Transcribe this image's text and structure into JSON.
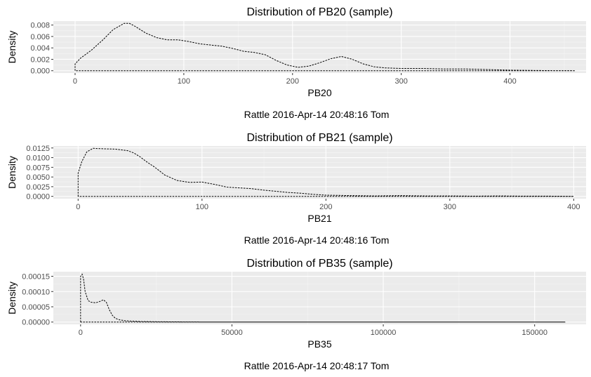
{
  "chart_data": [
    {
      "type": "area",
      "title": "Distribution of PB20 (sample)",
      "xlabel": "PB20",
      "ylabel": "Density",
      "caption": "Rattle 2016-Apr-14 20:48:16 Tom",
      "xlim": [
        -20,
        470
      ],
      "ylim": [
        -0.0004,
        0.0087
      ],
      "x_ticks": [
        0,
        100,
        200,
        300,
        400
      ],
      "y_ticks": [
        0.0,
        0.002,
        0.004,
        0.006,
        0.008
      ],
      "y_tick_labels": [
        "0.000",
        "0.002",
        "0.004",
        "0.006",
        "0.008"
      ],
      "x_tick_labels": [
        "0",
        "100",
        "200",
        "300",
        "400"
      ],
      "grid": true,
      "series": [
        {
          "x": [
            0,
            5,
            15,
            25,
            35,
            45,
            50,
            55,
            65,
            75,
            85,
            95,
            105,
            115,
            125,
            135,
            145,
            155,
            165,
            175,
            185,
            195,
            205,
            215,
            225,
            235,
            245,
            255,
            265,
            275,
            285,
            300,
            320,
            340,
            360,
            380,
            400,
            420,
            440,
            460
          ],
          "y": [
            0.0012,
            0.0022,
            0.0036,
            0.0053,
            0.0072,
            0.0083,
            0.0083,
            0.0078,
            0.0066,
            0.0058,
            0.0054,
            0.0054,
            0.0051,
            0.0047,
            0.0045,
            0.0043,
            0.0039,
            0.0034,
            0.0032,
            0.0028,
            0.0018,
            0.001,
            0.0006,
            0.0008,
            0.0014,
            0.0021,
            0.0025,
            0.002,
            0.0012,
            0.0007,
            0.0005,
            0.0004,
            0.0004,
            0.0003,
            0.0003,
            0.0002,
            0.0001,
            5e-05,
            2e-05,
            0.0
          ]
        }
      ]
    },
    {
      "type": "area",
      "title": "Distribution of PB21 (sample)",
      "xlabel": "PB21",
      "ylabel": "Density",
      "caption": "Rattle 2016-Apr-14 20:48:16 Tom",
      "xlim": [
        -20,
        410
      ],
      "ylim": [
        -0.0006,
        0.013
      ],
      "x_ticks": [
        0,
        100,
        200,
        300,
        400
      ],
      "y_ticks": [
        0.0,
        0.0025,
        0.005,
        0.0075,
        0.01,
        0.0125
      ],
      "y_tick_labels": [
        "0.0000",
        "0.0025",
        "0.0050",
        "0.0075",
        "0.0100",
        "0.0125"
      ],
      "x_tick_labels": [
        "0",
        "100",
        "200",
        "300",
        "400"
      ],
      "grid": true,
      "series": [
        {
          "x": [
            0,
            3,
            7,
            12,
            20,
            30,
            40,
            45,
            50,
            55,
            62,
            70,
            80,
            90,
            100,
            110,
            120,
            130,
            140,
            150,
            160,
            170,
            180,
            190,
            200,
            220,
            240,
            260,
            280,
            300,
            320,
            340,
            360,
            380,
            400
          ],
          "y": [
            0.006,
            0.009,
            0.0115,
            0.0124,
            0.0123,
            0.0122,
            0.0118,
            0.0112,
            0.0102,
            0.009,
            0.0075,
            0.0055,
            0.0041,
            0.0036,
            0.0037,
            0.0031,
            0.0024,
            0.0022,
            0.002,
            0.0016,
            0.0013,
            0.001,
            0.0008,
            0.0005,
            0.0003,
            0.0002,
            0.0001,
            0.0002,
            0.0001,
            0.0001,
            5e-05,
            0.0001,
            5e-05,
            5e-05,
            0.0
          ]
        }
      ]
    },
    {
      "type": "area",
      "title": "Distribution of PB35 (sample)",
      "xlabel": "PB35",
      "ylabel": "Density",
      "caption": "Rattle 2016-Apr-14 20:48:17 Tom",
      "xlim": [
        -9000,
        167000
      ],
      "ylim": [
        -7.5e-06,
        0.000165
      ],
      "x_ticks": [
        0,
        50000,
        100000,
        150000
      ],
      "y_ticks": [
        0.0,
        5e-05,
        0.0001,
        0.00015
      ],
      "y_tick_labels": [
        "0.00000",
        "0.00005",
        "0.00010",
        "0.00015"
      ],
      "x_tick_labels": [
        "0",
        "50000",
        "100000",
        "150000"
      ],
      "grid": true,
      "series": [
        {
          "x": [
            0,
            500,
            1000,
            1500,
            2500,
            3500,
            5000,
            6500,
            7500,
            8500,
            9500,
            10500,
            11500,
            13000,
            15000,
            20000,
            25000,
            30000,
            40000,
            60000,
            80000,
            100000,
            120000,
            140000,
            160000
          ],
          "y": [
            0.00015,
            0.000157,
            0.00014,
            0.0001,
            7e-05,
            6.5e-05,
            6.3e-05,
            6.8e-05,
            7.3e-05,
            6.5e-05,
            4e-05,
            2.2e-05,
            1.2e-05,
            7e-06,
            4e-06,
            2e-06,
            1e-06,
            5e-07,
            2e-07,
            1e-07,
            0.0,
            0.0,
            0.0,
            0.0,
            0.0
          ]
        }
      ]
    }
  ]
}
